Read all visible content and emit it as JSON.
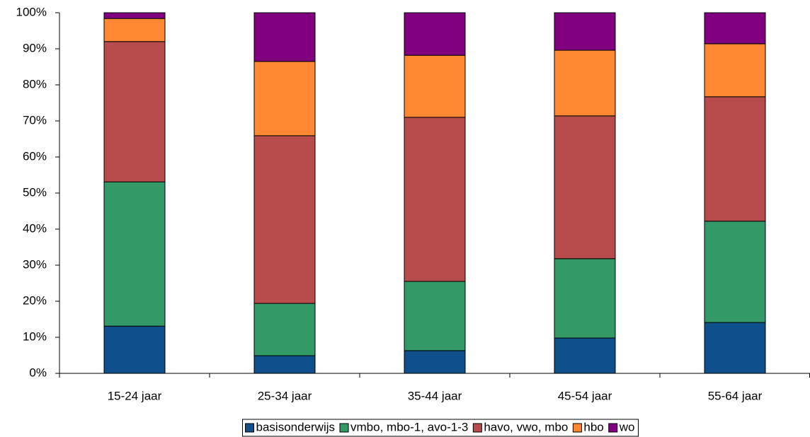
{
  "chart_data": {
    "type": "stacked_bar",
    "categories": [
      "15-24 jaar",
      "25-34 jaar",
      "35-44 jaar",
      "45-54 jaar",
      "55-64 jaar"
    ],
    "series": [
      {
        "name": "basisonderwijs",
        "color": "#0f4f8c",
        "values": [
          13.1,
          4.9,
          6.3,
          9.8,
          14.1
        ]
      },
      {
        "name": "vmbo, mbo-1, avo-1-3",
        "color": "#339966",
        "values": [
          40.0,
          14.5,
          19.2,
          22.0,
          28.1
        ]
      },
      {
        "name": "havo, vwo, mbo",
        "color": "#b84c4c",
        "values": [
          38.9,
          46.5,
          45.5,
          39.6,
          34.5
        ]
      },
      {
        "name": "hbo",
        "color": "#ff8833",
        "values": [
          6.4,
          20.6,
          17.2,
          18.2,
          14.7
        ]
      },
      {
        "name": "wo",
        "color": "#800080",
        "values": [
          1.6,
          13.5,
          11.8,
          10.4,
          8.6
        ]
      }
    ],
    "ylim": [
      0,
      100
    ],
    "yticks": [
      {
        "value": 0,
        "label": "0%"
      },
      {
        "value": 10,
        "label": "10%"
      },
      {
        "value": 20,
        "label": "20%"
      },
      {
        "value": 30,
        "label": "30%"
      },
      {
        "value": 40,
        "label": "40%"
      },
      {
        "value": 50,
        "label": "50%"
      },
      {
        "value": 60,
        "label": "60%"
      },
      {
        "value": 70,
        "label": "70%"
      },
      {
        "value": 80,
        "label": "80%"
      },
      {
        "value": 90,
        "label": "90%"
      },
      {
        "value": 100,
        "label": "100%"
      }
    ],
    "legend": "bottom"
  }
}
